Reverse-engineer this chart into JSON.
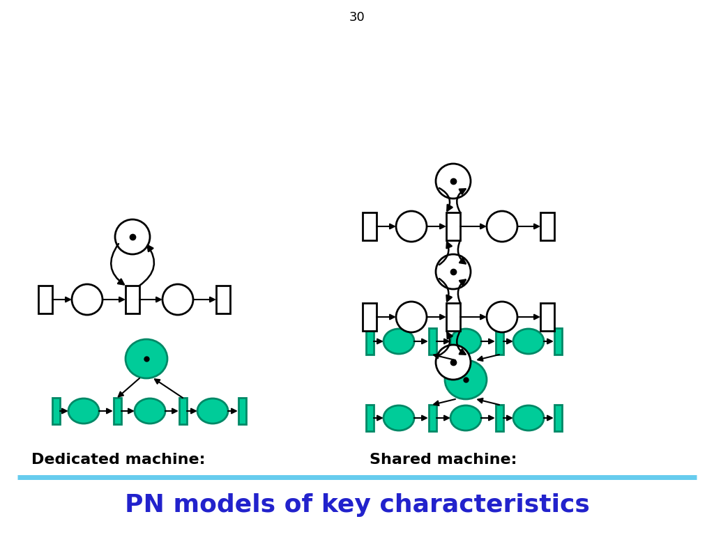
{
  "title": "PN models of key characteristics",
  "title_color": "#2222CC",
  "title_fontsize": 26,
  "separator_color": "#66CCEE",
  "bg_color": "#FFFFFF",
  "teal": "#00CC99",
  "teal_edge": "#008866",
  "dedicated_label": "Dedicated machine:",
  "shared_label": "Shared machine:",
  "page_number": "30"
}
